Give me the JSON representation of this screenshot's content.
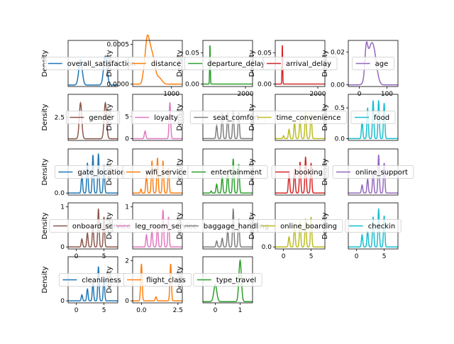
{
  "figure": {
    "subplots": [
      {
        "name": "overall_satisfaction",
        "color": "#1f77b4",
        "legend": "overall_satisfaction",
        "ylabel": "Density",
        "ylim": [
          -0.1,
          3.0
        ],
        "yticks": [],
        "xlim": [
          -0.5,
          1.5
        ],
        "xticks": [],
        "peaks": [
          [
            0,
            1.7,
            0.07
          ],
          [
            1,
            1.95,
            0.07
          ]
        ],
        "baseline": 0
      },
      {
        "name": "distance",
        "color": "#ff7f0e",
        "legend": "distance",
        "ylabel": "Density",
        "ylim": [
          -3e-05,
          0.00055
        ],
        "yticks": [
          {
            "v": 0.0005,
            "t": "0.0005"
          },
          {
            "v": 0.0,
            "t": "0.0000"
          }
        ],
        "xlim": [
          -250,
          1350
        ],
        "xticks": [
          {
            "v": 1000,
            "t": "1000"
          }
        ],
        "peaks": [
          [
            100,
            8e-05,
            40
          ],
          [
            200,
            0.00035,
            60
          ],
          [
            290,
            0.0004,
            80
          ],
          [
            420,
            0.00022,
            70
          ],
          [
            600,
            8e-05,
            90
          ]
        ],
        "baseline": 0
      },
      {
        "name": "departure_delay",
        "color": "#2ca02c",
        "legend": "departure_delay",
        "ylabel": "Density",
        "ylim": [
          -0.004,
          0.07
        ],
        "yticks": [
          {
            "v": 0.05,
            "t": "0.05"
          },
          {
            "v": 0.0,
            "t": "0.00"
          }
        ],
        "xlim": [
          -400,
          2400
        ],
        "xticks": [
          {
            "v": 2000,
            "t": "2000"
          }
        ],
        "peaks": [
          [
            0,
            0.065,
            18
          ]
        ],
        "baseline": 0
      },
      {
        "name": "arrival_delay",
        "color": "#d62728",
        "legend": "arrival_delay",
        "ylabel": "Density",
        "ylim": [
          -0.004,
          0.07
        ],
        "yticks": [
          {
            "v": 0.05,
            "t": "0.05"
          },
          {
            "v": 0.0,
            "t": "0.00"
          }
        ],
        "xlim": [
          -400,
          2400
        ],
        "xticks": [
          {
            "v": 2000,
            "t": "2000"
          }
        ],
        "peaks": [
          [
            0,
            0.065,
            18
          ]
        ],
        "baseline": 0
      },
      {
        "name": "age",
        "color": "#9467bd",
        "legend": "age",
        "ylabel": "Density",
        "ylim": [
          -0.001,
          0.027
        ],
        "yticks": [
          {
            "v": 0.02,
            "t": "0.02"
          },
          {
            "v": 0.0,
            "t": "0.00"
          }
        ],
        "xlim": [
          -40,
          140
        ],
        "xticks": [
          {
            "v": 0,
            "t": "0"
          },
          {
            "v": 100,
            "t": "100"
          }
        ],
        "peaks": [
          [
            25,
            0.016,
            5
          ],
          [
            40,
            0.02,
            12
          ],
          [
            55,
            0.012,
            10
          ]
        ],
        "baseline": 0
      },
      {
        "name": "gender",
        "color": "#8c564b",
        "legend": "gender",
        "ylabel": "Density",
        "ylim": [
          -0.2,
          5.2
        ],
        "yticks": [
          {
            "v": 2.5,
            "t": "2.5"
          }
        ],
        "xlim": [
          -0.5,
          1.5
        ],
        "xticks": [],
        "peaks": [
          [
            0,
            4.2,
            0.05
          ],
          [
            1,
            4.2,
            0.05
          ]
        ],
        "baseline": 0
      },
      {
        "name": "loyalty",
        "color": "#e377c2",
        "legend": "loyalty",
        "ylabel": "Density",
        "ylim": [
          -0.4,
          10
        ],
        "yticks": [
          {
            "v": 5,
            "t": "5"
          },
          {
            "v": 0,
            "t": "0"
          }
        ],
        "xlim": [
          -0.5,
          1.5
        ],
        "xticks": [],
        "peaks": [
          [
            0,
            1.7,
            0.03
          ],
          [
            1,
            8.2,
            0.03
          ]
        ],
        "baseline": 0
      },
      {
        "name": "seat_comfort",
        "color": "#7f7f7f",
        "legend": "seat_comfort",
        "ylabel": "Density",
        "ylim": [
          -0.05,
          1.2
        ],
        "yticks": [],
        "xlim": [
          -1.5,
          7.5
        ],
        "xticks": [],
        "peaks": [
          [
            1,
            0.35,
            0.12
          ],
          [
            2,
            0.72,
            0.12
          ],
          [
            3,
            0.72,
            0.12
          ],
          [
            4,
            0.75,
            0.12
          ],
          [
            5,
            0.72,
            0.12
          ]
        ],
        "baseline": 0
      },
      {
        "name": "time_convenience",
        "color": "#bcbd22",
        "legend": "time_convenience",
        "ylabel": "Density",
        "ylim": [
          -0.05,
          1.2
        ],
        "yticks": [],
        "xlim": [
          -1.5,
          7.5
        ],
        "xticks": [],
        "peaks": [
          [
            0,
            0.08,
            0.1
          ],
          [
            1,
            0.25,
            0.12
          ],
          [
            2,
            0.45,
            0.12
          ],
          [
            3,
            0.55,
            0.12
          ],
          [
            4,
            0.72,
            0.12
          ],
          [
            5,
            0.68,
            0.12
          ]
        ],
        "baseline": 0
      },
      {
        "name": "food",
        "color": "#17becf",
        "legend": "food",
        "ylabel": "Density",
        "ylim": [
          -0.03,
          0.72
        ],
        "yticks": [
          {
            "v": 0.5,
            "t": "0.5"
          },
          {
            "v": 0.0,
            "t": "0.0"
          }
        ],
        "xlim": [
          -1.5,
          7.5
        ],
        "xticks": [],
        "peaks": [
          [
            1,
            0.28,
            0.12
          ],
          [
            2,
            0.5,
            0.12
          ],
          [
            3,
            0.62,
            0.12
          ],
          [
            4,
            0.62,
            0.12
          ],
          [
            5,
            0.58,
            0.12
          ]
        ],
        "baseline": 0
      },
      {
        "name": "gate_location",
        "color": "#1f77b4",
        "legend": "gate_location",
        "ylabel": "Density",
        "ylim": [
          -0.05,
          1.1
        ],
        "yticks": [
          {
            "v": 0.0,
            "t": "0.0"
          }
        ],
        "xlim": [
          -1.5,
          7.5
        ],
        "xticks": [],
        "peaks": [
          [
            1,
            0.48,
            0.12
          ],
          [
            2,
            0.75,
            0.12
          ],
          [
            3,
            0.95,
            0.12
          ],
          [
            4,
            0.98,
            0.12
          ],
          [
            5,
            0.7,
            0.12
          ]
        ],
        "baseline": 0
      },
      {
        "name": "wifi_service",
        "color": "#ff7f0e",
        "legend": "wifi_service",
        "ylabel": "Density",
        "ylim": [
          -0.05,
          1.1
        ],
        "yticks": [],
        "xlim": [
          -1.5,
          7.5
        ],
        "xticks": [],
        "peaks": [
          [
            0,
            0.1,
            0.1
          ],
          [
            1,
            0.45,
            0.12
          ],
          [
            2,
            0.8,
            0.12
          ],
          [
            3,
            0.88,
            0.12
          ],
          [
            4,
            0.8,
            0.12
          ],
          [
            5,
            0.62,
            0.12
          ]
        ],
        "baseline": 0
      },
      {
        "name": "entertainment",
        "color": "#2ca02c",
        "legend": "entertainment",
        "ylabel": "Density",
        "ylim": [
          -0.05,
          1.1
        ],
        "yticks": [],
        "xlim": [
          -1.5,
          7.5
        ],
        "xticks": [],
        "peaks": [
          [
            0,
            0.05,
            0.1
          ],
          [
            1,
            0.22,
            0.12
          ],
          [
            2,
            0.42,
            0.12
          ],
          [
            3,
            0.58,
            0.12
          ],
          [
            4,
            0.85,
            0.12
          ],
          [
            5,
            0.72,
            0.12
          ]
        ],
        "baseline": 0
      },
      {
        "name": "booking",
        "color": "#d62728",
        "legend": "booking",
        "ylabel": "Density",
        "ylim": [
          -0.05,
          1.1
        ],
        "yticks": [],
        "xlim": [
          -1.5,
          7.5
        ],
        "xticks": [],
        "peaks": [
          [
            1,
            0.5,
            0.12
          ],
          [
            2,
            0.6,
            0.12
          ],
          [
            3,
            0.78,
            0.12
          ],
          [
            4,
            0.9,
            0.12
          ],
          [
            5,
            0.75,
            0.12
          ]
        ],
        "baseline": 0
      },
      {
        "name": "online_support",
        "color": "#9467bd",
        "legend": "online_support",
        "ylabel": "Density",
        "ylim": [
          -0.05,
          1.1
        ],
        "yticks": [],
        "xlim": [
          -1.5,
          7.5
        ],
        "xticks": [],
        "peaks": [
          [
            1,
            0.2,
            0.12
          ],
          [
            2,
            0.35,
            0.12
          ],
          [
            3,
            0.55,
            0.12
          ],
          [
            4,
            0.95,
            0.12
          ],
          [
            5,
            0.75,
            0.12
          ]
        ],
        "baseline": 0
      },
      {
        "name": "onboard_service",
        "color": "#8c564b",
        "legend": "onboard_service",
        "ylabel": "Density",
        "ylim": [
          -0.05,
          1.1
        ],
        "yticks": [
          {
            "v": 1,
            "t": "1"
          },
          {
            "v": 0,
            "t": "0"
          }
        ],
        "xlim": [
          -1.5,
          7.5
        ],
        "xticks": [
          {
            "v": 0,
            "t": "0"
          },
          {
            "v": 5,
            "t": "5"
          }
        ],
        "peaks": [
          [
            1,
            0.2,
            0.12
          ],
          [
            2,
            0.35,
            0.12
          ],
          [
            3,
            0.55,
            0.12
          ],
          [
            4,
            0.95,
            0.12
          ],
          [
            5,
            0.75,
            0.12
          ]
        ],
        "baseline": 0
      },
      {
        "name": "leg_room_service",
        "color": "#e377c2",
        "legend": "leg_room_service",
        "ylabel": "Density",
        "ylim": [
          -0.05,
          1.1
        ],
        "yticks": [
          {
            "v": 1,
            "t": "1"
          }
        ],
        "xlim": [
          -1.5,
          7.5
        ],
        "xticks": [],
        "peaks": [
          [
            1,
            0.3,
            0.12
          ],
          [
            2,
            0.42,
            0.12
          ],
          [
            3,
            0.55,
            0.12
          ],
          [
            4,
            0.92,
            0.12
          ],
          [
            5,
            0.75,
            0.12
          ]
        ],
        "baseline": 0
      },
      {
        "name": "baggage_handling",
        "color": "#7f7f7f",
        "legend": "baggage_handling",
        "ylabel": "Density",
        "ylim": [
          -0.05,
          1.1
        ],
        "yticks": [],
        "xlim": [
          -1.5,
          7.5
        ],
        "xticks": [],
        "peaks": [
          [
            1,
            0.15,
            0.12
          ],
          [
            2,
            0.22,
            0.12
          ],
          [
            3,
            0.42,
            0.12
          ],
          [
            4,
            0.95,
            0.12
          ],
          [
            5,
            0.7,
            0.12
          ]
        ],
        "baseline": 0
      },
      {
        "name": "online_boarding",
        "color": "#bcbd22",
        "legend": "online_boarding",
        "ylabel": "Density",
        "ylim": [
          -0.05,
          1.1
        ],
        "yticks": [
          {
            "v": 0.0,
            "t": "0.0"
          }
        ],
        "xlim": [
          -1.5,
          7.5
        ],
        "xticks": [
          {
            "v": 0,
            "t": "0"
          },
          {
            "v": 5,
            "t": "5"
          }
        ],
        "peaks": [
          [
            1,
            0.25,
            0.12
          ],
          [
            2,
            0.55,
            0.12
          ],
          [
            3,
            0.65,
            0.12
          ],
          [
            4,
            0.7,
            0.12
          ],
          [
            5,
            0.75,
            0.12
          ]
        ],
        "baseline": 0
      },
      {
        "name": "checkin",
        "color": "#17becf",
        "legend": "checkin",
        "ylabel": "Density",
        "ylim": [
          -0.05,
          1.1
        ],
        "yticks": [],
        "xlim": [
          -1.5,
          7.5
        ],
        "xticks": [
          {
            "v": 0,
            "t": "0"
          },
          {
            "v": 5,
            "t": "5"
          }
        ],
        "peaks": [
          [
            1,
            0.3,
            0.12
          ],
          [
            2,
            0.4,
            0.12
          ],
          [
            3,
            0.75,
            0.12
          ],
          [
            4,
            0.95,
            0.12
          ],
          [
            5,
            0.78,
            0.12
          ]
        ],
        "baseline": 0
      },
      {
        "name": "cleanliness",
        "color": "#1f77b4",
        "legend": "cleanliness",
        "ylabel": "Density",
        "ylim": [
          -0.05,
          1.1
        ],
        "yticks": [
          {
            "v": 0,
            "t": "0"
          }
        ],
        "xlim": [
          -1.5,
          7.5
        ],
        "xticks": [
          {
            "v": 0,
            "t": "0"
          },
          {
            "v": 5,
            "t": "5"
          }
        ],
        "peaks": [
          [
            1,
            0.15,
            0.12
          ],
          [
            2,
            0.3,
            0.12
          ],
          [
            3,
            0.45,
            0.12
          ],
          [
            4,
            0.85,
            0.12
          ],
          [
            5,
            0.6,
            0.12
          ]
        ],
        "baseline": 0
      },
      {
        "name": "flight_class",
        "color": "#ff7f0e",
        "legend": "flight_class",
        "ylabel": "Density",
        "ylim": [
          -0.1,
          2.2
        ],
        "yticks": [
          {
            "v": 2,
            "t": "2"
          },
          {
            "v": 0,
            "t": "0"
          }
        ],
        "xlim": [
          -0.6,
          2.8
        ],
        "xticks": [
          {
            "v": 0,
            "t": "0.0"
          },
          {
            "v": 2.5,
            "t": "2.5"
          }
        ],
        "peaks": [
          [
            0,
            1.85,
            0.05
          ],
          [
            1,
            0.2,
            0.05
          ],
          [
            2,
            1.85,
            0.05
          ]
        ],
        "baseline": 0
      },
      {
        "name": "type_travel",
        "color": "#2ca02c",
        "legend": "type_travel",
        "ylabel": "Density",
        "ylim": [
          -0.1,
          3.6
        ],
        "yticks": [],
        "xlim": [
          -0.5,
          1.5
        ],
        "xticks": [
          {
            "v": 0,
            "t": "0"
          },
          {
            "v": 1,
            "t": "1"
          }
        ],
        "peaks": [
          [
            0,
            1.35,
            0.06
          ],
          [
            1,
            3.3,
            0.05
          ]
        ],
        "baseline": 0
      }
    ]
  }
}
